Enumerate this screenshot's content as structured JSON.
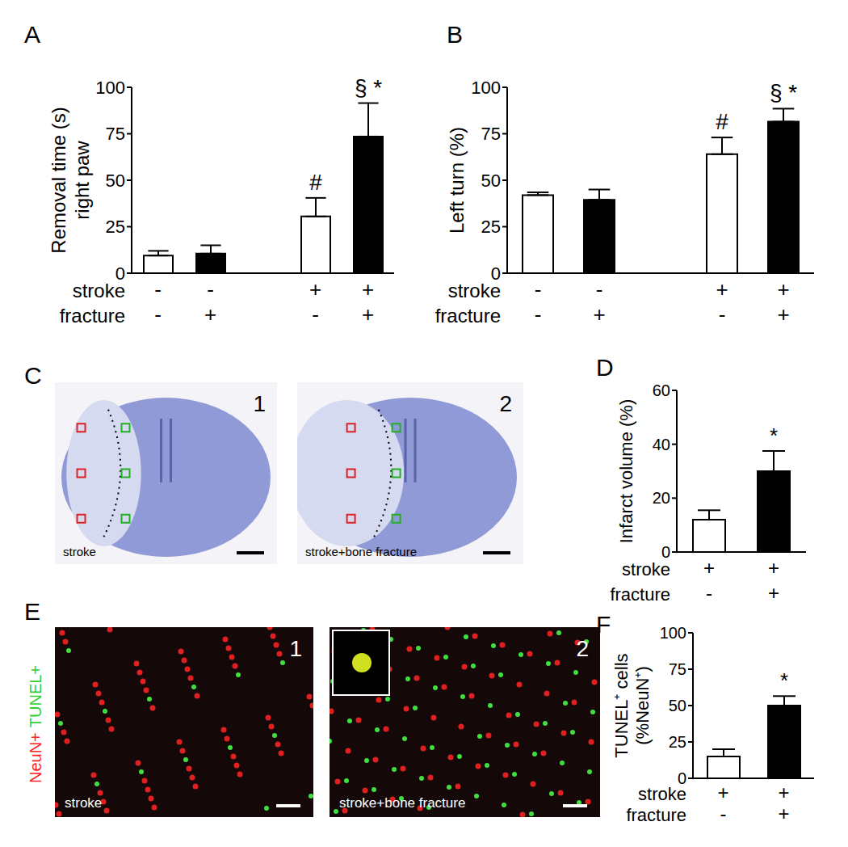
{
  "chart_data": [
    {
      "type": "bar",
      "title": "A",
      "y_label": [
        "Removal time (s)",
        "right paw"
      ],
      "category_rows": [
        "stroke",
        "fracture"
      ],
      "categories": [
        [
          "-",
          "-"
        ],
        [
          "-",
          "+"
        ],
        null,
        [
          "+",
          "-"
        ],
        [
          "+",
          "+"
        ]
      ],
      "values": [
        9.5,
        10.5,
        null,
        30.5,
        73.5
      ],
      "errors": [
        2.5,
        4.5,
        null,
        10,
        18
      ],
      "annotations": [
        null,
        null,
        null,
        "#",
        "§ *"
      ],
      "colors": [
        "#ffffff",
        "#000000",
        "#ffffff",
        "#ffffff",
        "#000000"
      ],
      "ylim": [
        0,
        100
      ],
      "yticks": [
        0,
        25,
        50,
        75,
        100
      ]
    },
    {
      "type": "bar",
      "title": "B",
      "y_label": [
        "Left turn (%)"
      ],
      "category_rows": [
        "stroke",
        "fracture"
      ],
      "categories": [
        [
          "-",
          "-"
        ],
        [
          "-",
          "+"
        ],
        null,
        [
          "+",
          "-"
        ],
        [
          "+",
          "+"
        ]
      ],
      "values": [
        42,
        39.5,
        null,
        64,
        81.5
      ],
      "errors": [
        1.5,
        5.5,
        null,
        9,
        7
      ],
      "annotations": [
        null,
        null,
        null,
        "#",
        "§ *"
      ],
      "colors": [
        "#ffffff",
        "#000000",
        "#ffffff",
        "#ffffff",
        "#000000"
      ],
      "ylim": [
        0,
        100
      ],
      "yticks": [
        0,
        25,
        50,
        75,
        100
      ]
    },
    {
      "type": "bar",
      "title": "D",
      "y_label": [
        "Infarct volume (%)"
      ],
      "category_rows": [
        "stroke",
        "fracture"
      ],
      "categories": [
        [
          "+",
          "-"
        ],
        [
          "+",
          "+"
        ]
      ],
      "values": [
        12,
        30
      ],
      "errors": [
        3.5,
        7.5
      ],
      "annotations": [
        null,
        "*"
      ],
      "colors": [
        "#ffffff",
        "#000000"
      ],
      "ylim": [
        0,
        60
      ],
      "yticks": [
        0,
        20,
        40,
        60
      ]
    },
    {
      "type": "bar",
      "title": "F",
      "y_label": [
        "TUNEL⁺ cells",
        "(%NeuN⁺)"
      ],
      "category_rows": [
        "stroke",
        "fracture"
      ],
      "categories": [
        [
          "+",
          "-"
        ],
        [
          "+",
          "+"
        ]
      ],
      "values": [
        15,
        50
      ],
      "errors": [
        5,
        6.5
      ],
      "annotations": [
        null,
        "*"
      ],
      "colors": [
        "#ffffff",
        "#000000"
      ],
      "ylim": [
        0,
        100
      ],
      "yticks": [
        0,
        25,
        50,
        75,
        100
      ]
    }
  ],
  "image_panels": [
    {
      "title": "C",
      "images": [
        {
          "number": "1",
          "caption": "stroke"
        },
        {
          "number": "2",
          "caption": "stroke+bone fracture"
        }
      ]
    },
    {
      "title": "E",
      "channel_labels": [
        {
          "text": "NeuN+",
          "color": "#ff2020"
        },
        {
          "text": "TUNEL+",
          "color": "#30d030"
        }
      ],
      "images": [
        {
          "number": "1",
          "caption": "stroke"
        },
        {
          "number": "2",
          "caption": "stroke+bone fracture"
        }
      ]
    }
  ]
}
